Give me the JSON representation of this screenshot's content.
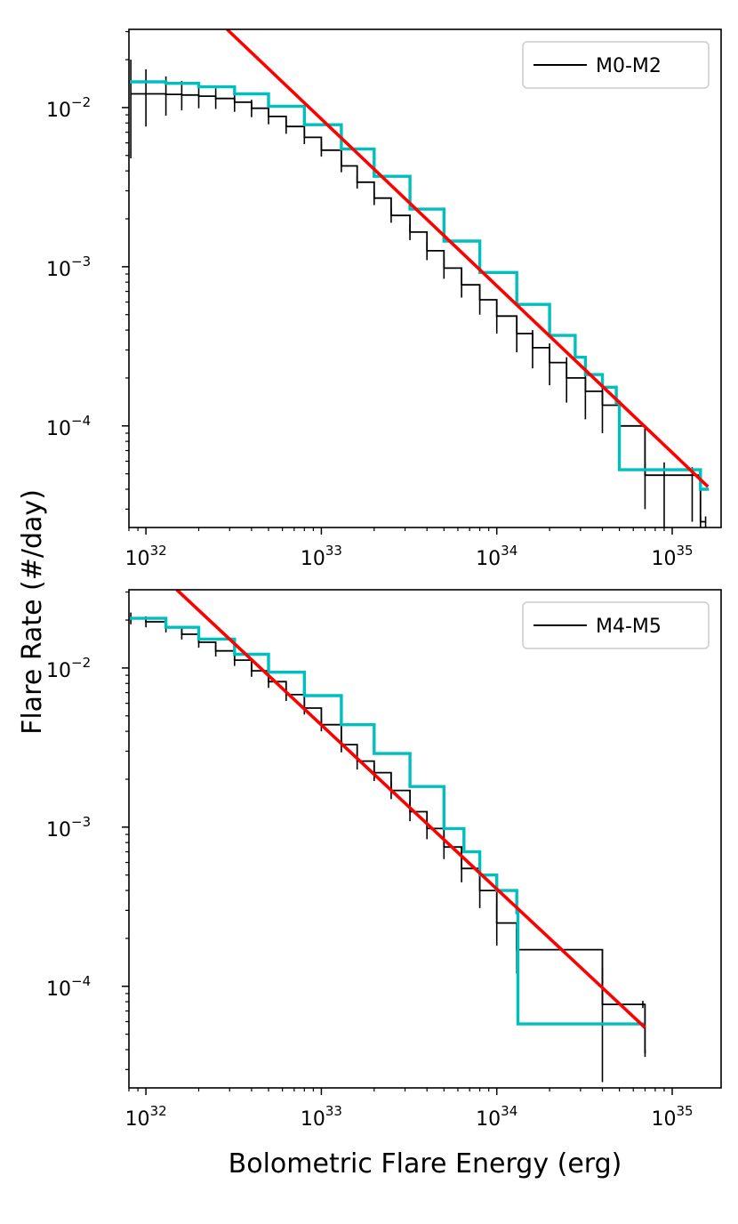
{
  "figure": {
    "ylabel": "Flare Rate (#/day)",
    "xlabel": "Bolometric Flare Energy (erg)"
  },
  "colors": {
    "data": "#000000",
    "model": "#00bfbf",
    "fit": "#ff0000"
  },
  "chart_data": [
    {
      "type": "line",
      "scale": "log-log",
      "legend": {
        "label": "M0-M2",
        "position": "top-right"
      },
      "xlim": [
        8e+31,
        1.9e+35
      ],
      "ylim": [
        2.3e-05,
        0.031
      ],
      "xticks": [
        {
          "base": "10",
          "exp": "32",
          "value": 1e+32
        },
        {
          "base": "10",
          "exp": "33",
          "value": 1e+33
        },
        {
          "base": "10",
          "exp": "34",
          "value": 1e+34
        },
        {
          "base": "10",
          "exp": "35",
          "value": 1e+35
        }
      ],
      "yticks": [
        {
          "base": "10",
          "exp": "−2",
          "value": 0.01
        },
        {
          "base": "10",
          "exp": "−3",
          "value": 0.001
        },
        {
          "base": "10",
          "exp": "−4",
          "value": 0.0001
        }
      ],
      "series": [
        {
          "name": "M0-M2",
          "kind": "observed cumulative rate with error bars",
          "x": [
            8.2e+31,
            1e+32,
            1.3e+32,
            1.6e+32,
            2e+32,
            2.5e+32,
            3.2e+32,
            4e+32,
            5e+32,
            6.3e+32,
            8e+32,
            1e+33,
            1.3e+33,
            1.6e+33,
            2e+33,
            2.5e+33,
            3.2e+33,
            4e+33,
            5e+33,
            6.3e+33,
            8e+33,
            1e+34,
            1.3e+34,
            1.6e+34,
            2e+34,
            2.5e+34,
            3.2e+34,
            4e+34,
            5e+34,
            7e+34,
            9e+34,
            1.3e+35,
            1.45e+35,
            1.55e+35
          ],
          "y": [
            0.0122,
            0.0122,
            0.0121,
            0.012,
            0.0118,
            0.0114,
            0.0108,
            0.0099,
            0.0088,
            0.0076,
            0.0065,
            0.0054,
            0.0043,
            0.0034,
            0.0027,
            0.0021,
            0.00165,
            0.00126,
            0.00098,
            0.00077,
            0.00062,
            0.00049,
            0.00038,
            0.00031,
            0.00025,
            0.0002,
            0.000165,
            0.000135,
            0.0001,
            4.9e-05,
            4.9e-05,
            4.9e-05,
            2.5e-05,
            2.5e-05
          ],
          "yerr_low": [
            0.0074,
            0.0046,
            0.0032,
            0.0024,
            0.0019,
            0.0016,
            0.0014,
            0.0012,
            0.00095,
            0.00075,
            0.0006,
            0.00048,
            0.00038,
            0.0003,
            0.00026,
            0.00021,
            0.00018,
            0.00016,
            0.00014,
            0.00013,
            0.00012,
            0.00011,
            9e-05,
            8e-05,
            7e-05,
            6e-05,
            5.5e-05,
            4.5e-05,
            4e-05,
            1.9e-05,
            2.6e-05,
            2.4e-05,
            2e-06,
            2e-06
          ],
          "yerr_high": [
            0.0078,
            0.0052,
            0.0036,
            0.0027,
            0.0021,
            0.0018,
            0.0015,
            0.0013,
            0.001,
            0.0008,
            0.00065,
            0.00052,
            0.0004,
            0.00032,
            0.00028,
            0.00023,
            0.0002,
            0.00018,
            0.00016,
            0.00014,
            0.00013,
            0.00012,
            0.0001,
            9e-05,
            8e-05,
            7e-05,
            6e-05,
            5e-05,
            4.5e-05,
            1e-05,
            1e-05,
            6e-06,
            2e-06,
            2e-06
          ]
        },
        {
          "name": "model",
          "kind": "cyan step curve",
          "x": [
            8e+31,
            1.3e+32,
            2e+32,
            3.2e+32,
            5e+32,
            8e+32,
            1.3e+33,
            2e+33,
            3.2e+33,
            5e+33,
            8e+33,
            1.3e+34,
            2e+34,
            2.8e+34,
            3.2e+34,
            4e+34,
            4.8e+34,
            5e+34,
            1.3e+35,
            1.45e+35,
            1.62e+35
          ],
          "y": [
            0.0145,
            0.0142,
            0.0135,
            0.0122,
            0.0102,
            0.0078,
            0.0055,
            0.0037,
            0.0023,
            0.00145,
            0.00092,
            0.00058,
            0.00037,
            0.00027,
            0.00021,
            0.000175,
            0.00014,
            5.3e-05,
            5.3e-05,
            4e-05,
            4e-05
          ]
        },
        {
          "name": "power-law fit",
          "kind": "red line",
          "x": [
            2.9e+32,
            1.6e+35
          ],
          "y": [
            0.031,
            4.15e-05
          ]
        }
      ]
    },
    {
      "type": "line",
      "scale": "log-log",
      "legend": {
        "label": "M4-M5",
        "position": "top-right"
      },
      "xlim": [
        8e+31,
        1.9e+35
      ],
      "ylim": [
        2.3e-05,
        0.031
      ],
      "xticks": [
        {
          "base": "10",
          "exp": "32",
          "value": 1e+32
        },
        {
          "base": "10",
          "exp": "33",
          "value": 1e+33
        },
        {
          "base": "10",
          "exp": "34",
          "value": 1e+34
        },
        {
          "base": "10",
          "exp": "35",
          "value": 1e+35
        }
      ],
      "yticks": [
        {
          "base": "10",
          "exp": "−2",
          "value": 0.01
        },
        {
          "base": "10",
          "exp": "−3",
          "value": 0.001
        },
        {
          "base": "10",
          "exp": "−4",
          "value": 0.0001
        }
      ],
      "series": [
        {
          "name": "M4-M5",
          "kind": "observed cumulative rate with error bars",
          "x": [
            8.2e+31,
            1e+32,
            1.3e+32,
            1.6e+32,
            2e+32,
            2.5e+32,
            3.2e+32,
            4e+32,
            5e+32,
            6.3e+32,
            8e+32,
            1e+33,
            1.3e+33,
            1.6e+33,
            2e+33,
            2.5e+33,
            3.2e+33,
            4e+33,
            5e+33,
            6.3e+33,
            8e+33,
            1e+34,
            1.3e+34,
            4e+34,
            6.8e+34,
            7e+34
          ],
          "y": [
            0.0205,
            0.0195,
            0.018,
            0.0163,
            0.0145,
            0.0128,
            0.0112,
            0.0096,
            0.0082,
            0.0068,
            0.0056,
            0.0044,
            0.0033,
            0.0026,
            0.0022,
            0.0017,
            0.00125,
            0.00098,
            0.00075,
            0.00055,
            0.0004,
            0.00025,
            0.00017,
            7.7e-05,
            7.7e-05,
            3.8e-05
          ],
          "yerr_low": [
            0.0017,
            0.0015,
            0.0013,
            0.0012,
            0.0011,
            0.001,
            0.0009,
            0.0008,
            0.0007,
            0.0006,
            0.0005,
            0.0004,
            0.00035,
            0.0003,
            0.00025,
            0.0002,
            0.00016,
            0.00014,
            0.00012,
            0.0001,
            9e-05,
            7e-05,
            5e-05,
            5.2e-05,
            4e-06,
            2e-06
          ],
          "yerr_high": [
            0.0018,
            0.0016,
            0.0014,
            0.0013,
            0.0012,
            0.0011,
            0.001,
            0.0009,
            0.0008,
            0.0007,
            0.0006,
            0.00045,
            0.0004,
            0.00035,
            0.0003,
            0.00023,
            0.00018,
            0.00016,
            0.00014,
            0.00012,
            0.0001,
            8e-05,
            6e-05,
            5.3e-05,
            4e-06,
            2e-06
          ]
        },
        {
          "name": "model",
          "kind": "cyan step curve",
          "x": [
            8e+31,
            1.3e+32,
            2e+32,
            3.2e+32,
            5e+32,
            8e+32,
            1.3e+33,
            2e+33,
            3.2e+33,
            5e+33,
            6.5e+33,
            8e+33,
            1e+34,
            1.3e+34,
            1.32e+34,
            6.9e+34
          ],
          "y": [
            0.0205,
            0.018,
            0.0152,
            0.0122,
            0.0094,
            0.0067,
            0.0044,
            0.0029,
            0.0018,
            0.00098,
            0.0007,
            0.0005,
            0.0004,
            0.00029,
            5.8e-05,
            5.8e-05
          ]
        },
        {
          "name": "power-law fit",
          "kind": "red line",
          "x": [
            1.5e+32,
            7e+34
          ],
          "y": [
            0.031,
            5.5e-05
          ]
        }
      ]
    }
  ]
}
